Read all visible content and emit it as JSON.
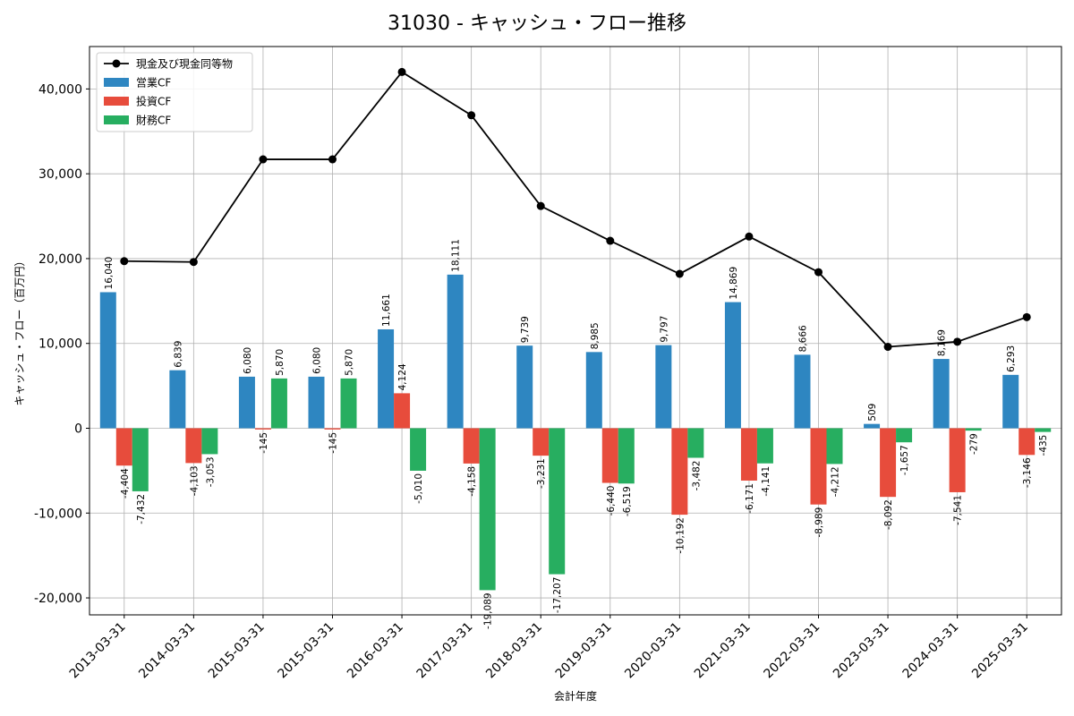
{
  "chart_data": {
    "type": "bar",
    "title": "31030 - キャッシュ・フロー推移",
    "xlabel": "会計年度",
    "ylabel": "キャッシュ・フロー（百万円）",
    "ylim": [
      -22000,
      45000
    ],
    "yticks": [
      -20000,
      -10000,
      0,
      10000,
      20000,
      30000,
      40000
    ],
    "ytick_labels": [
      "-20,000",
      "-10,000",
      "0",
      "10,000",
      "20,000",
      "30,000",
      "40,000"
    ],
    "grid": true,
    "legend_position": "top-left",
    "categories": [
      "2013-03-31",
      "2014-03-31",
      "2015-03-31",
      "2015-03-31",
      "2016-03-31",
      "2017-03-31",
      "2018-03-31",
      "2019-03-31",
      "2020-03-31",
      "2021-03-31",
      "2022-03-31",
      "2023-03-31",
      "2024-03-31",
      "2025-03-31"
    ],
    "series": [
      {
        "name": "営業CF",
        "type": "bar",
        "color": "#2e86c1",
        "values": [
          16040,
          6839,
          6080,
          6080,
          11661,
          18111,
          9739,
          8985,
          9797,
          14869,
          8666,
          509,
          8169,
          6293
        ],
        "labels": [
          "16,040",
          "6,839",
          "6,080",
          "6,080",
          "11,661",
          "18,111",
          "9,739",
          "8,985",
          "9,797",
          "14,869",
          "8,666",
          "509",
          "8,169",
          "6,293"
        ]
      },
      {
        "name": "投資CF",
        "type": "bar",
        "color": "#e74c3c",
        "values": [
          -4404,
          -4103,
          -145,
          -145,
          4124,
          -4158,
          -3231,
          -6440,
          -10192,
          -6171,
          -8989,
          -8092,
          -7541,
          -3146
        ],
        "labels": [
          "-4,404",
          "-4,103",
          "-145",
          "-145",
          "4,124",
          "-4,158",
          "-3,231",
          "-6,440",
          "-10,192",
          "-6,171",
          "-8,989",
          "-8,092",
          "-7,541",
          "-3,146"
        ]
      },
      {
        "name": "財務CF",
        "type": "bar",
        "color": "#27ae60",
        "values": [
          -7432,
          -3053,
          5870,
          5870,
          -5010,
          -19089,
          -17207,
          -6519,
          -3482,
          -4141,
          -4212,
          -1657,
          -279,
          -435
        ],
        "labels": [
          "-7,432",
          "-3,053",
          "5,870",
          "5,870",
          "-5,010",
          "-19,089",
          "-17,207",
          "-6,519",
          "-3,482",
          "-4,141",
          "-4,212",
          "-1,657",
          "-279",
          "-435"
        ]
      },
      {
        "name": "現金及び現金同等物",
        "type": "line",
        "color": "#000000",
        "values": [
          19700,
          19600,
          31700,
          31700,
          42000,
          36900,
          26200,
          22100,
          18200,
          22600,
          18400,
          9600,
          10200,
          13100
        ]
      }
    ]
  }
}
